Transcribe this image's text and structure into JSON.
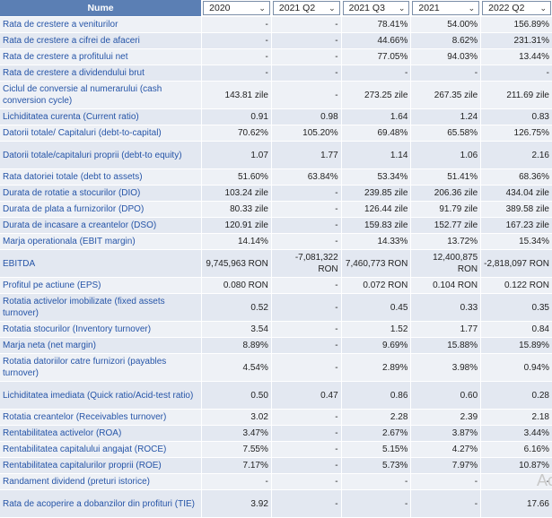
{
  "header": {
    "name_label": "Nume",
    "periods": [
      "2020",
      "2021 Q2",
      "2021 Q3",
      "2021",
      "2022 Q2"
    ]
  },
  "rows": [
    {
      "label": "Rata de crestere a veniturilor",
      "v": [
        "-",
        "-",
        "78.41%",
        "54.00%",
        "156.89%"
      ],
      "tall": false
    },
    {
      "label": "Rata de crestere a cifrei de afaceri",
      "v": [
        "-",
        "-",
        "44.66%",
        "8.62%",
        "231.31%"
      ],
      "tall": false
    },
    {
      "label": "Rata de crestere a profitului net",
      "v": [
        "-",
        "-",
        "77.05%",
        "94.03%",
        "13.44%"
      ],
      "tall": false
    },
    {
      "label": "Rata de crestere a dividendului brut",
      "v": [
        "-",
        "-",
        "-",
        "-",
        "-"
      ],
      "tall": false
    },
    {
      "label": "Ciclul de conversie al numerarului (cash conversion cycle)",
      "v": [
        "143.81 zile",
        "-",
        "273.25 zile",
        "267.35 zile",
        "211.69 zile"
      ],
      "tall": true
    },
    {
      "label": "Lichiditatea curenta (Current ratio)",
      "v": [
        "0.91",
        "0.98",
        "1.64",
        "1.24",
        "0.83"
      ],
      "tall": false
    },
    {
      "label": "Datorii totale/ Capitaluri (debt-to-capital)",
      "v": [
        "70.62%",
        "105.20%",
        "69.48%",
        "65.58%",
        "126.75%"
      ],
      "tall": false
    },
    {
      "label": "Datorii totale/capitaluri proprii (debt-to equity)",
      "v": [
        "1.07",
        "1.77",
        "1.14",
        "1.06",
        "2.16"
      ],
      "tall": true
    },
    {
      "label": "Rata datoriei totale (debt to assets)",
      "v": [
        "51.60%",
        "63.84%",
        "53.34%",
        "51.41%",
        "68.36%"
      ],
      "tall": false
    },
    {
      "label": "Durata de rotatie a stocurilor (DIO)",
      "v": [
        "103.24 zile",
        "-",
        "239.85 zile",
        "206.36 zile",
        "434.04 zile"
      ],
      "tall": false
    },
    {
      "label": "Durata de plata a furnizorilor (DPO)",
      "v": [
        "80.33 zile",
        "-",
        "126.44 zile",
        "91.79 zile",
        "389.58 zile"
      ],
      "tall": false
    },
    {
      "label": "Durata de incasare a creantelor (DSO)",
      "v": [
        "120.91 zile",
        "-",
        "159.83 zile",
        "152.77 zile",
        "167.23 zile"
      ],
      "tall": false
    },
    {
      "label": "Marja operationala (EBIT margin)",
      "v": [
        "14.14%",
        "-",
        "14.33%",
        "13.72%",
        "15.34%"
      ],
      "tall": false
    },
    {
      "label": "EBITDA",
      "v": [
        "9,745,963 RON",
        "-7,081,322 RON",
        "7,460,773 RON",
        "12,400,875 RON",
        "-2,818,097 RON"
      ],
      "tall": true
    },
    {
      "label": "Profitul pe actiune (EPS)",
      "v": [
        "0.080 RON",
        "-",
        "0.072 RON",
        "0.104 RON",
        "0.122 RON"
      ],
      "tall": false
    },
    {
      "label": "Rotatia activelor imobilizate (fixed assets turnover)",
      "v": [
        "0.52",
        "-",
        "0.45",
        "0.33",
        "0.35"
      ],
      "tall": true
    },
    {
      "label": "Rotatia stocurilor (Inventory turnover)",
      "v": [
        "3.54",
        "-",
        "1.52",
        "1.77",
        "0.84"
      ],
      "tall": false
    },
    {
      "label": "Marja neta (net margin)",
      "v": [
        "8.89%",
        "-",
        "9.69%",
        "15.88%",
        "15.89%"
      ],
      "tall": false
    },
    {
      "label": "Rotatia datoriilor catre furnizori (payables turnover)",
      "v": [
        "4.54%",
        "-",
        "2.89%",
        "3.98%",
        "0.94%"
      ],
      "tall": true
    },
    {
      "label": "Lichiditatea imediata (Quick ratio/Acid-test ratio)",
      "v": [
        "0.50",
        "0.47",
        "0.86",
        "0.60",
        "0.28"
      ],
      "tall": true
    },
    {
      "label": "Rotatia creantelor (Receivables turnover)",
      "v": [
        "3.02",
        "-",
        "2.28",
        "2.39",
        "2.18"
      ],
      "tall": false
    },
    {
      "label": "Rentabilitatea activelor (ROA)",
      "v": [
        "3.47%",
        "-",
        "2.67%",
        "3.87%",
        "3.44%"
      ],
      "tall": false
    },
    {
      "label": "Rentabilitatea capitalului angajat (ROCE)",
      "v": [
        "7.55%",
        "-",
        "5.15%",
        "4.27%",
        "6.16%"
      ],
      "tall": false
    },
    {
      "label": "Rentabilitatea capitalurilor proprii (ROE)",
      "v": [
        "7.17%",
        "-",
        "5.73%",
        "7.97%",
        "10.87%"
      ],
      "tall": false
    },
    {
      "label": "Randament dividend (preturi istorice)",
      "v": [
        "-",
        "-",
        "-",
        "-",
        "-"
      ],
      "tall": false
    },
    {
      "label": "Rata de acoperire a dobanzilor din profituri (TIE)",
      "v": [
        "3.92",
        "-",
        "-",
        "-",
        "17.66"
      ],
      "tall": true
    }
  ],
  "icons": {
    "dropdown": "chevron-down-icon"
  },
  "colors": {
    "header_bg": "#5b7fb4",
    "label_text": "#2554a7",
    "row_odd": "#eef1f6",
    "row_even": "#e3e8f1"
  }
}
